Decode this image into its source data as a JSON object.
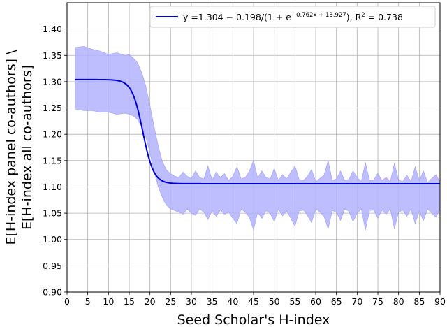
{
  "chart_data": {
    "type": "line",
    "xlabel": "Seed Scholar's H-index",
    "ylabel_line1": "E[H-index panel co-authors] \\",
    "ylabel_line2": "E[H-index all co-authors]",
    "xlim": [
      0,
      90
    ],
    "ylim": [
      0.9,
      1.45
    ],
    "xticks": [
      0,
      5,
      10,
      15,
      20,
      25,
      30,
      35,
      40,
      45,
      50,
      55,
      60,
      65,
      70,
      75,
      80,
      85,
      90
    ],
    "yticks": [
      0.9,
      0.95,
      1.0,
      1.05,
      1.1,
      1.15,
      1.2,
      1.25,
      1.3,
      1.35,
      1.4
    ],
    "ytick_labels": [
      "0.90",
      "0.95",
      "1.00",
      "1.05",
      "1.10",
      "1.15",
      "1.20",
      "1.25",
      "1.30",
      "1.35",
      "1.40"
    ],
    "grid": true,
    "legend_position": "top-right",
    "legend": {
      "prefix": "y =1.304 − 0.198/(1 + e",
      "exponent": "−0.762x + 13.927",
      "suffix": "), R",
      "r2_sup": "2",
      "r2_value": " = 0.738"
    },
    "colors": {
      "fit_line": "#0000dd",
      "band": "#b3b3ff",
      "grid": "#b0b0b0"
    },
    "fit": {
      "a": 1.304,
      "b": 0.198,
      "k": 0.762,
      "c": 13.927,
      "x_start": 2,
      "x_end": 90
    },
    "band": {
      "x": [
        2,
        4,
        6,
        8,
        10,
        12,
        14,
        15,
        16,
        17,
        18,
        19,
        20,
        21,
        22,
        23,
        24,
        25,
        26,
        27,
        28,
        29,
        30,
        31,
        32,
        33,
        34,
        35,
        36,
        37,
        38,
        39,
        40,
        41,
        42,
        43,
        44,
        45,
        46,
        47,
        48,
        49,
        50,
        51,
        52,
        53,
        54,
        55,
        56,
        57,
        58,
        59,
        60,
        61,
        62,
        63,
        64,
        65,
        66,
        67,
        68,
        69,
        70,
        71,
        72,
        73,
        74,
        75,
        76,
        77,
        78,
        79,
        80,
        81,
        82,
        83,
        84,
        85,
        86,
        87,
        88,
        89,
        90
      ],
      "upper": [
        1.365,
        1.367,
        1.362,
        1.358,
        1.352,
        1.355,
        1.35,
        1.352,
        1.345,
        1.336,
        1.318,
        1.292,
        1.255,
        1.215,
        1.178,
        1.148,
        1.132,
        1.125,
        1.12,
        1.118,
        1.128,
        1.12,
        1.116,
        1.13,
        1.118,
        1.115,
        1.14,
        1.113,
        1.128,
        1.118,
        1.125,
        1.112,
        1.12,
        1.138,
        1.115,
        1.118,
        1.13,
        1.15,
        1.117,
        1.13,
        1.118,
        1.115,
        1.135,
        1.112,
        1.123,
        1.115,
        1.128,
        1.14,
        1.114,
        1.112,
        1.12,
        1.133,
        1.11,
        1.116,
        1.122,
        1.15,
        1.112,
        1.115,
        1.13,
        1.112,
        1.114,
        1.13,
        1.118,
        1.11,
        1.146,
        1.112,
        1.113,
        1.126,
        1.112,
        1.118,
        1.11,
        1.145,
        1.113,
        1.11,
        1.122,
        1.11,
        1.138,
        1.112,
        1.13,
        1.108,
        1.116,
        1.123,
        1.11
      ],
      "lower": [
        1.248,
        1.245,
        1.245,
        1.242,
        1.242,
        1.238,
        1.24,
        1.238,
        1.235,
        1.228,
        1.215,
        1.195,
        1.165,
        1.13,
        1.1,
        1.08,
        1.065,
        1.058,
        1.055,
        1.052,
        1.048,
        1.058,
        1.05,
        1.046,
        1.058,
        1.052,
        1.038,
        1.055,
        1.044,
        1.056,
        1.048,
        1.052,
        1.04,
        1.03,
        1.058,
        1.052,
        1.042,
        1.018,
        1.052,
        1.04,
        1.055,
        1.05,
        1.034,
        1.058,
        1.045,
        1.054,
        1.04,
        1.025,
        1.054,
        1.056,
        1.046,
        1.032,
        1.058,
        1.052,
        1.044,
        1.02,
        1.055,
        1.052,
        1.036,
        1.058,
        1.054,
        1.034,
        1.05,
        1.058,
        1.018,
        1.055,
        1.056,
        1.04,
        1.056,
        1.048,
        1.058,
        1.02,
        1.052,
        1.056,
        1.044,
        1.058,
        1.03,
        1.054,
        1.036,
        1.058,
        1.05,
        1.042,
        1.058
      ]
    }
  }
}
